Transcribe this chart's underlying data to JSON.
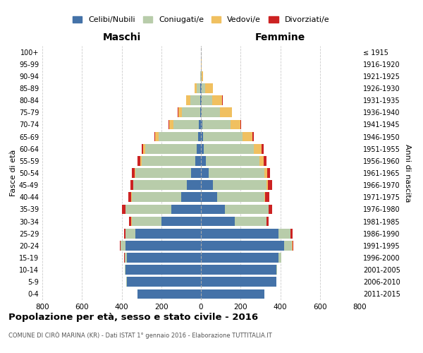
{
  "age_groups": [
    "0-4",
    "5-9",
    "10-14",
    "15-19",
    "20-24",
    "25-29",
    "30-34",
    "35-39",
    "40-44",
    "45-49",
    "50-54",
    "55-59",
    "60-64",
    "65-69",
    "70-74",
    "75-79",
    "80-84",
    "85-89",
    "90-94",
    "95-99",
    "100+"
  ],
  "birth_years": [
    "2011-2015",
    "2006-2010",
    "2001-2005",
    "1996-2000",
    "1991-1995",
    "1986-1990",
    "1981-1985",
    "1976-1980",
    "1971-1975",
    "1966-1970",
    "1961-1965",
    "1956-1960",
    "1951-1955",
    "1946-1950",
    "1941-1945",
    "1936-1940",
    "1931-1935",
    "1926-1930",
    "1921-1925",
    "1916-1920",
    "≤ 1915"
  ],
  "maschi_celibi": [
    320,
    375,
    380,
    375,
    380,
    330,
    200,
    150,
    100,
    70,
    50,
    30,
    20,
    15,
    10,
    5,
    3,
    2,
    0,
    0,
    0
  ],
  "maschi_coniugati": [
    1,
    2,
    5,
    10,
    25,
    50,
    150,
    230,
    250,
    270,
    280,
    270,
    260,
    200,
    130,
    90,
    50,
    20,
    3,
    1,
    0
  ],
  "maschi_vedovi": [
    0,
    0,
    0,
    0,
    1,
    1,
    2,
    2,
    2,
    2,
    3,
    5,
    10,
    15,
    20,
    20,
    20,
    10,
    2,
    0,
    0
  ],
  "maschi_divorziati": [
    0,
    0,
    0,
    1,
    2,
    5,
    10,
    15,
    15,
    15,
    15,
    15,
    10,
    5,
    3,
    2,
    1,
    0,
    0,
    0,
    0
  ],
  "femmine_nubili": [
    320,
    380,
    380,
    390,
    420,
    390,
    170,
    120,
    80,
    60,
    40,
    25,
    15,
    10,
    8,
    5,
    3,
    2,
    0,
    0,
    0
  ],
  "femmine_coniugate": [
    1,
    2,
    5,
    15,
    40,
    60,
    160,
    220,
    240,
    270,
    280,
    270,
    250,
    200,
    140,
    90,
    55,
    20,
    4,
    1,
    0
  ],
  "femmine_vedove": [
    0,
    0,
    0,
    0,
    1,
    2,
    2,
    3,
    5,
    8,
    15,
    20,
    40,
    50,
    50,
    60,
    50,
    40,
    8,
    2,
    1
  ],
  "femmine_divorziate": [
    0,
    0,
    0,
    2,
    5,
    10,
    10,
    15,
    20,
    20,
    15,
    15,
    10,
    5,
    3,
    2,
    1,
    0,
    0,
    0,
    0
  ],
  "color_celibi": "#4472a8",
  "color_coniugati": "#b8ccaa",
  "color_vedovi": "#f0c060",
  "color_divorziati": "#cc2222",
  "title": "Popolazione per età, sesso e stato civile - 2016",
  "subtitle": "COMUNE DI CIRÒ MARINA (KR) - Dati ISTAT 1° gennaio 2016 - Elaborazione TUTTITALIA.IT",
  "ylabel_left": "Fasce di età",
  "ylabel_right": "Anni di nascita",
  "xlabel_left": "Maschi",
  "xlabel_right": "Femmine",
  "xlim": 800,
  "background_color": "#ffffff",
  "grid_color": "#cccccc"
}
